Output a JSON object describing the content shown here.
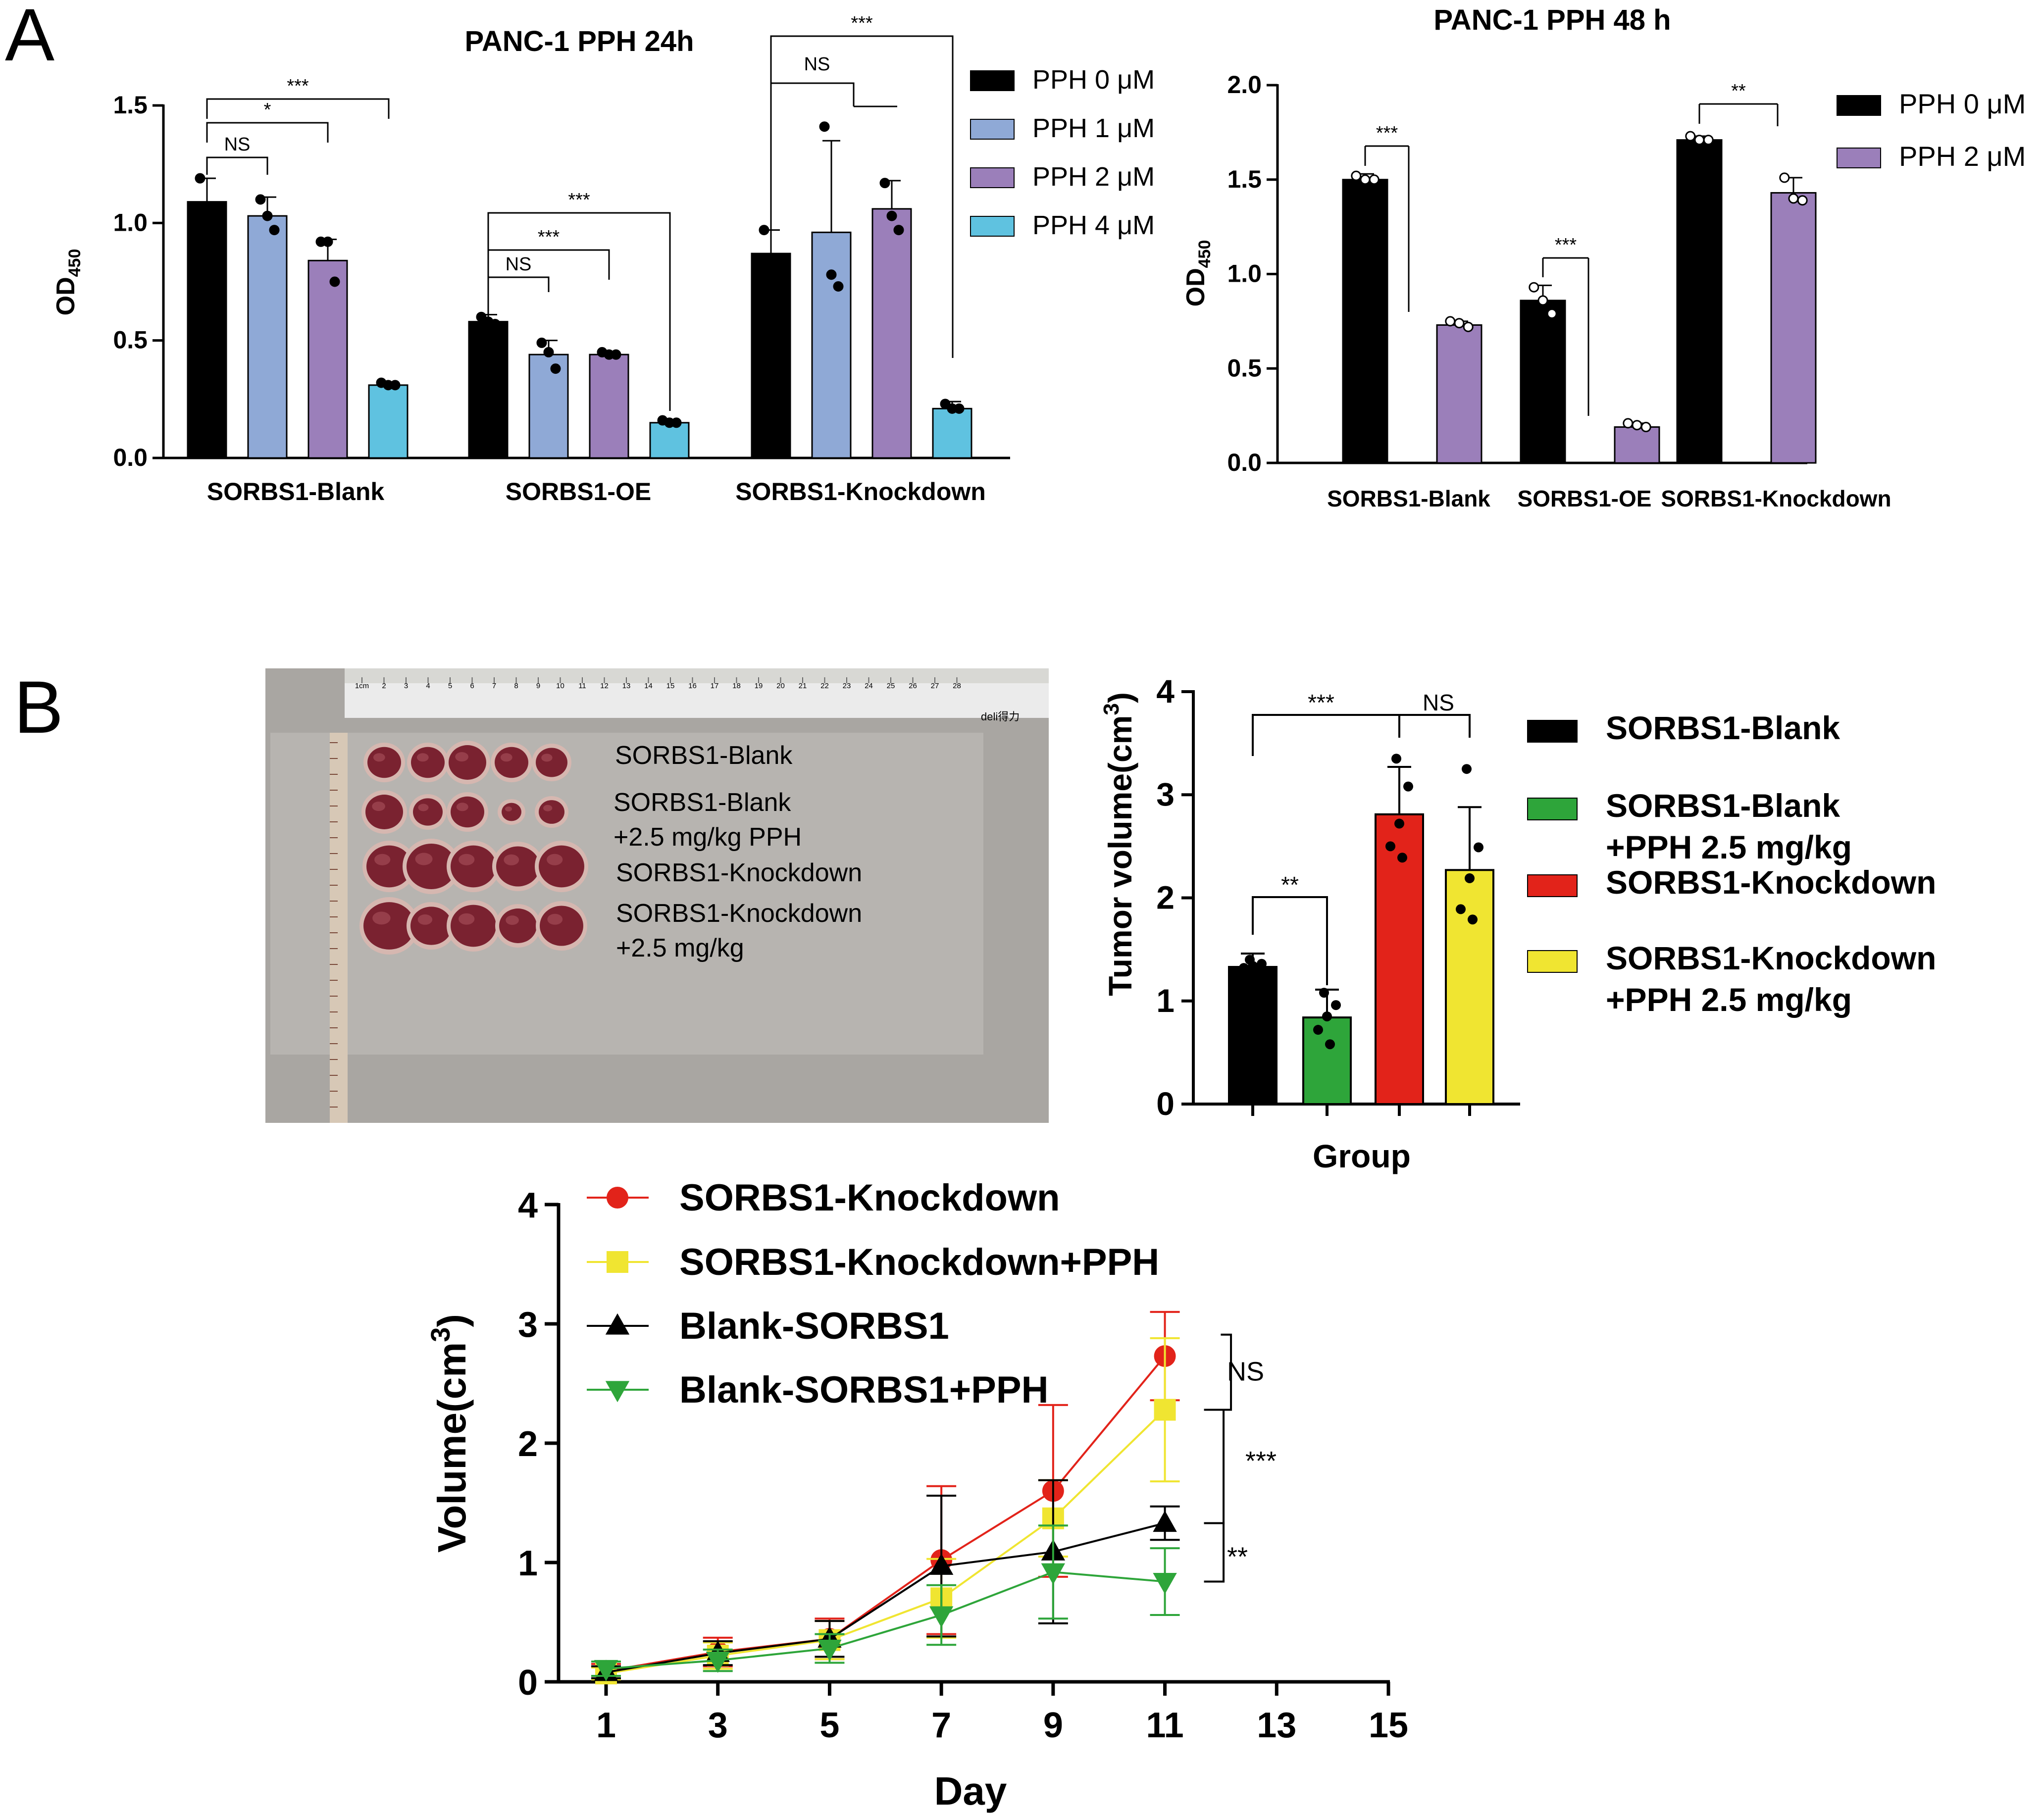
{
  "panels": {
    "a": "A",
    "b": "B"
  },
  "chart_data": [
    {
      "id": "a24",
      "type": "bar",
      "title": "PANC-1 PPH 24h",
      "ylabel": "OD",
      "ylabel_sub": "450",
      "ylim": [
        0,
        1.5
      ],
      "yticks": [
        "0.0",
        "0.5",
        "1.0",
        "1.5"
      ],
      "categories": [
        "SORBS1-Blank",
        "SORBS1-OE",
        "SORBS1-Knockdown"
      ],
      "series": [
        {
          "name": "PPH 0 μM",
          "color": "#000000",
          "values": [
            1.09,
            0.58,
            0.87
          ],
          "err": [
            0.1,
            0.03,
            0.1
          ],
          "points": [
            [
              1.19,
              1.07,
              1.05
            ],
            [
              0.6,
              0.58,
              0.57
            ],
            [
              0.97,
              0.82,
              0.82
            ]
          ]
        },
        {
          "name": "PPH 1 μM",
          "color": "#8fa9d6",
          "values": [
            1.03,
            0.44,
            0.96
          ],
          "err": [
            0.08,
            0.06,
            0.39
          ],
          "points": [
            [
              1.1,
              1.03,
              0.97
            ],
            [
              0.49,
              0.45,
              0.38
            ],
            [
              1.41,
              0.78,
              0.73
            ]
          ]
        },
        {
          "name": "PPH 2 μM",
          "color": "#9b7fba",
          "values": [
            0.84,
            0.44,
            1.06
          ],
          "err": [
            0.09,
            0.01,
            0.12
          ],
          "points": [
            [
              0.92,
              0.92,
              0.75
            ],
            [
              0.45,
              0.44,
              0.44
            ],
            [
              1.17,
              1.03,
              0.97
            ]
          ]
        },
        {
          "name": "PPH 4 μM",
          "color": "#5fc2e0",
          "values": [
            0.31,
            0.15,
            0.21
          ],
          "err": [
            0.01,
            0.01,
            0.03
          ],
          "points": [
            [
              0.32,
              0.31,
              0.31
            ],
            [
              0.16,
              0.15,
              0.15
            ],
            [
              0.23,
              0.21,
              0.21
            ]
          ]
        }
      ],
      "annotations": [
        "***",
        "*",
        "NS",
        "***",
        "***",
        "NS",
        "***",
        "NS"
      ]
    },
    {
      "id": "a48",
      "type": "bar",
      "title": "PANC-1  PPH 48 h",
      "ylabel": "OD",
      "ylabel_sub": "450",
      "ylim": [
        0,
        2.0
      ],
      "yticks": [
        "0.0",
        "0.5",
        "1.0",
        "1.5",
        "2.0"
      ],
      "categories": [
        "SORBS1-Blank",
        "SORBS1-OE",
        "SORBS1-Knockdown"
      ],
      "series": [
        {
          "name": "PPH 0 μM",
          "color": "#000000",
          "values": [
            1.5,
            0.86,
            1.71
          ],
          "err": [
            0.03,
            0.08,
            0.02
          ],
          "points": [
            [
              1.52,
              1.5,
              1.5
            ],
            [
              0.93,
              0.86,
              0.79
            ],
            [
              1.73,
              1.71,
              1.71
            ]
          ]
        },
        {
          "name": "PPH 2 μM",
          "color": "#9b7fba",
          "values": [
            0.73,
            0.19,
            1.43
          ],
          "err": [
            0.02,
            0.02,
            0.08
          ],
          "points": [
            [
              0.75,
              0.74,
              0.72
            ],
            [
              0.21,
              0.2,
              0.19
            ],
            [
              1.51,
              1.4,
              1.39
            ]
          ]
        }
      ],
      "annotations": [
        "***",
        "***",
        "**"
      ]
    },
    {
      "id": "b_bar",
      "type": "bar",
      "xlabel": "Group",
      "ylabel": "Tumor volume(cm",
      "ylabel_sup": "3",
      "ylabel_end": ")",
      "ylim": [
        0,
        4
      ],
      "yticks": [
        "0",
        "1",
        "2",
        "3",
        "4"
      ],
      "series": [
        {
          "name": "SORBS1-Blank",
          "name2": "",
          "color": "#000000",
          "value": 1.33,
          "err": 0.13,
          "points": [
            1.4,
            1.36,
            1.34,
            1.32,
            1.31
          ]
        },
        {
          "name": "SORBS1-Blank",
          "name2": "+PPH 2.5 mg/kg",
          "color": "#2ea53a",
          "value": 0.84,
          "err": 0.27,
          "points": [
            1.08,
            0.96,
            0.85,
            0.72,
            0.58
          ]
        },
        {
          "name": "SORBS1-Knockdown",
          "name2": "",
          "color": "#e2231a",
          "value": 2.81,
          "err": 0.46,
          "points": [
            3.35,
            3.08,
            2.72,
            2.5,
            2.39
          ]
        },
        {
          "name": "SORBS1-Knockdown",
          "name2": "+PPH 2.5 mg/kg",
          "color": "#f0e531",
          "value": 2.27,
          "err": 0.61,
          "points": [
            3.25,
            2.49,
            2.19,
            1.89,
            1.79
          ]
        }
      ],
      "annotations": [
        "***",
        "NS",
        "**"
      ]
    },
    {
      "id": "b_line",
      "type": "line",
      "xlabel": "Day",
      "ylabel": "Volume(cm",
      "ylabel_sup": "3",
      "ylabel_end": ")",
      "xlim": [
        0,
        15
      ],
      "ylim": [
        0,
        4
      ],
      "xticks": [
        "1",
        "3",
        "5",
        "7",
        "9",
        "11",
        "13",
        "15"
      ],
      "yticks": [
        "0",
        "1",
        "2",
        "3",
        "4"
      ],
      "x": [
        1,
        3,
        5,
        7,
        9,
        11
      ],
      "series": [
        {
          "name": "SORBS1-Knockdown",
          "color": "#e2231a",
          "marker": "circle",
          "values": [
            0.09,
            0.25,
            0.36,
            1.02,
            1.6,
            2.73
          ],
          "err": [
            0.06,
            0.12,
            0.17,
            0.62,
            0.72,
            0.37
          ]
        },
        {
          "name": "SORBS1-Knockdown+PPH",
          "color": "#f0e531",
          "marker": "square",
          "values": [
            0.07,
            0.22,
            0.35,
            0.7,
            1.37,
            2.28
          ],
          "err": [
            0.05,
            0.11,
            0.16,
            0.33,
            0.32,
            0.6
          ]
        },
        {
          "name": "Blank-SORBS1",
          "color": "#000000",
          "marker": "triangle-up",
          "values": [
            0.08,
            0.24,
            0.36,
            0.97,
            1.09,
            1.33
          ],
          "err": [
            0.05,
            0.1,
            0.15,
            0.59,
            0.6,
            0.14
          ]
        },
        {
          "name": "Blank-SORBS1+PPH",
          "color": "#2ea53a",
          "marker": "triangle-down",
          "values": [
            0.11,
            0.18,
            0.28,
            0.56,
            0.92,
            0.84
          ],
          "err": [
            0.06,
            0.09,
            0.12,
            0.25,
            0.39,
            0.28
          ]
        }
      ],
      "annotations": [
        "NS",
        "***",
        "**"
      ]
    }
  ],
  "photo": {
    "ruler_marks": [
      "1cm",
      "2",
      "3",
      "4",
      "5",
      "6",
      "7",
      "8",
      "9",
      "10",
      "11",
      "12",
      "13",
      "14",
      "15",
      "16",
      "17",
      "18",
      "19",
      "20",
      "21",
      "22",
      "23",
      "24",
      "25",
      "26",
      "27",
      "28"
    ],
    "brand": "deli得力",
    "labels": [
      "SORBS1-Blank",
      "SORBS1-Blank",
      "+2.5 mg/kg PPH",
      "SORBS1-Knockdown",
      "SORBS1-Knockdown",
      "+2.5 mg/kg"
    ]
  }
}
